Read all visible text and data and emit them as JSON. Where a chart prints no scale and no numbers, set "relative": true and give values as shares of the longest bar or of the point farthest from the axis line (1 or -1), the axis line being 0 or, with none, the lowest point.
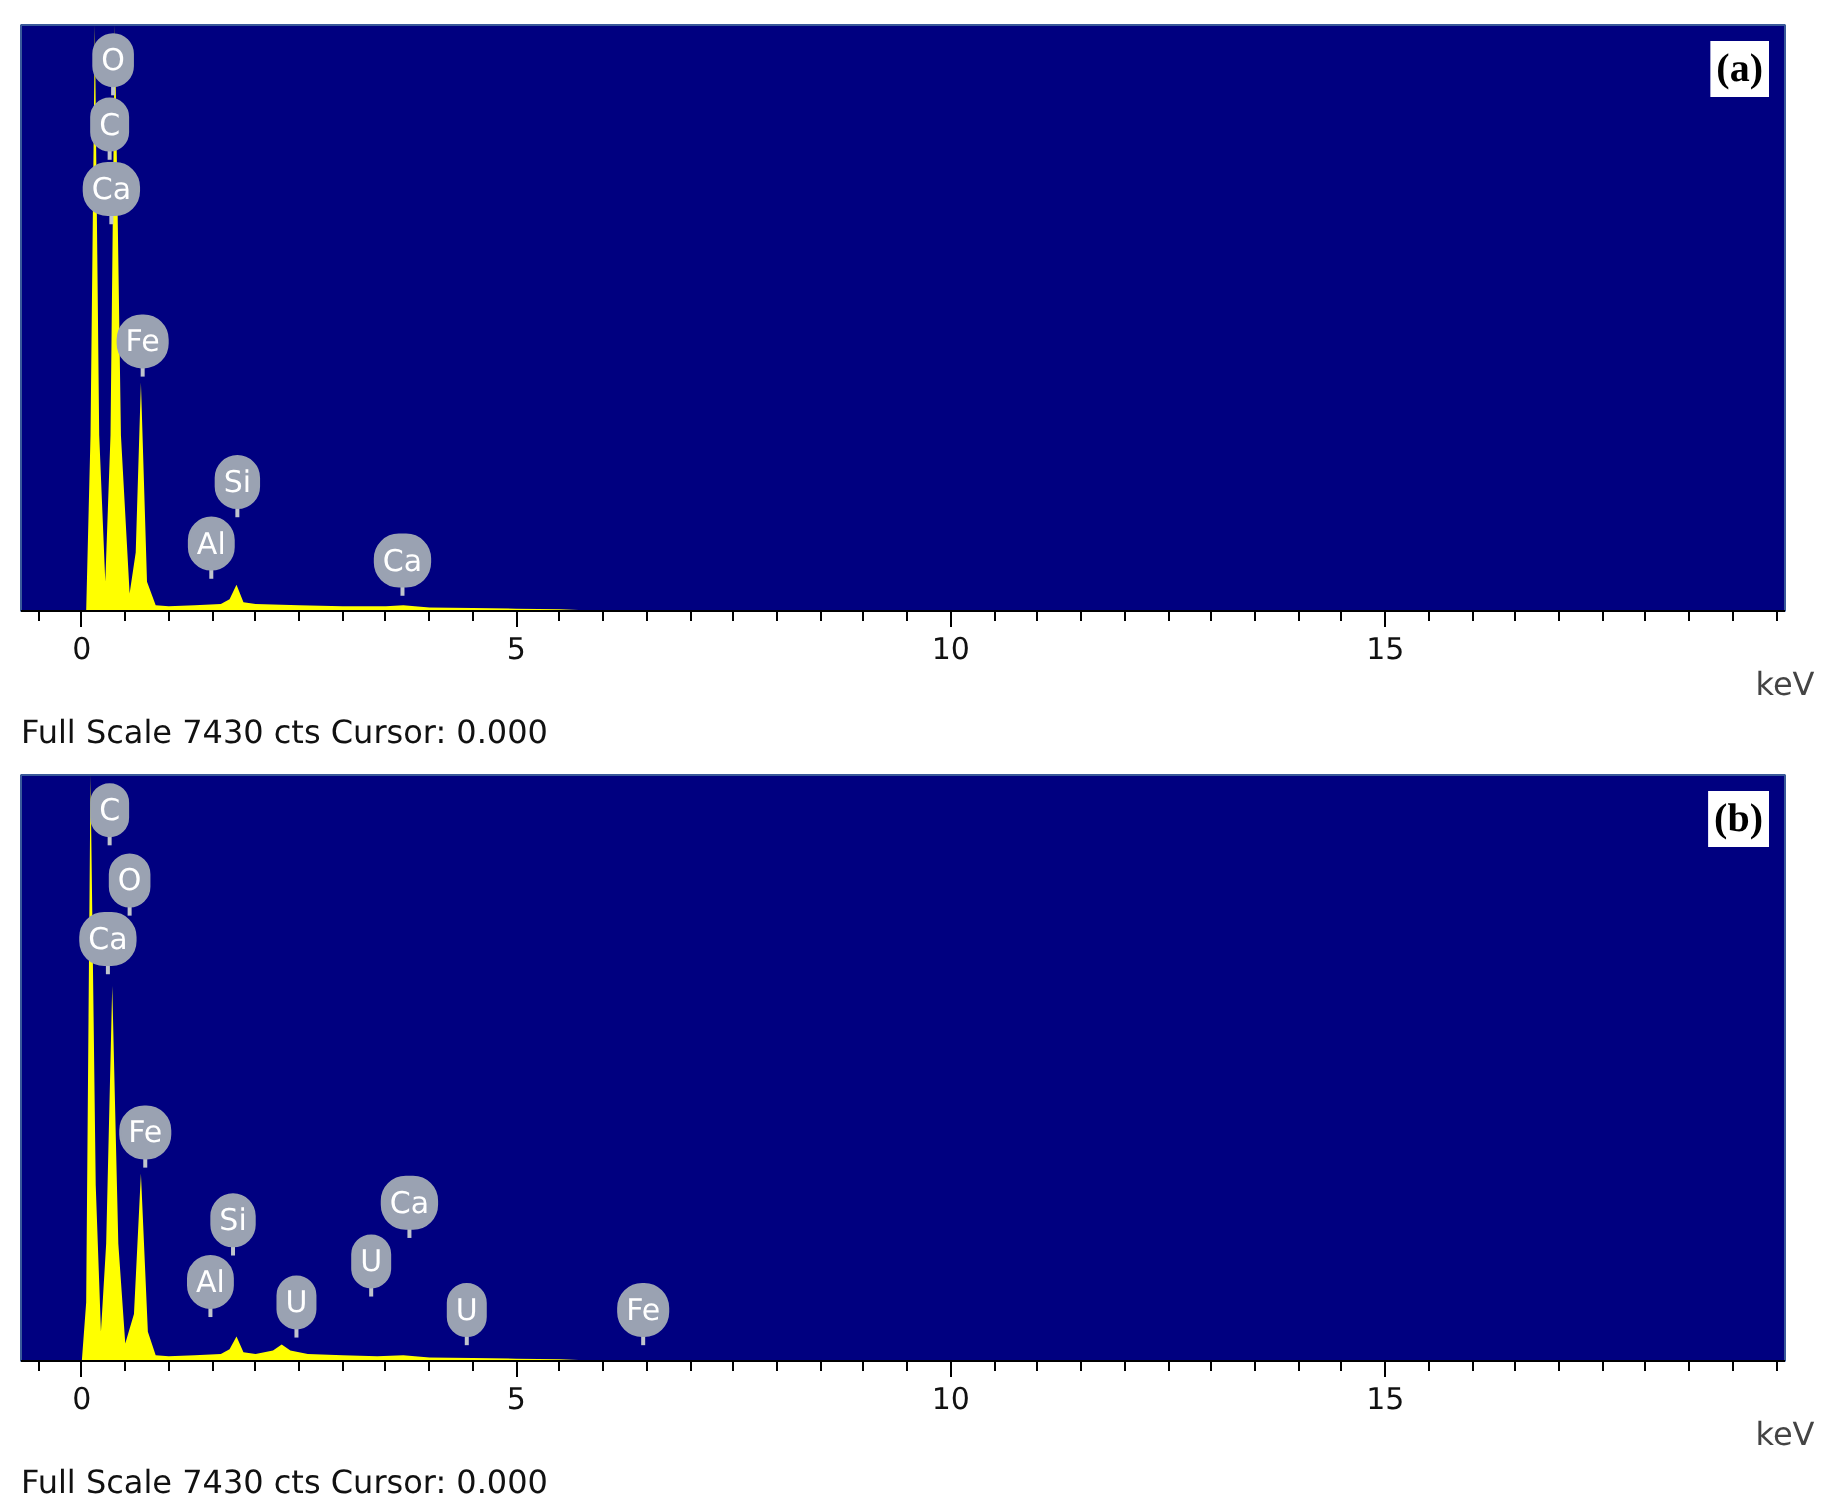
{
  "chart_data": [
    {
      "type": "area",
      "title": "(a)",
      "xlabel": "keV",
      "relative": true,
      "xlim": [
        -0.7,
        19.6
      ],
      "xticks": [
        0,
        5,
        10,
        15
      ],
      "tick_labels": "x",
      "grid": false,
      "series": [
        {
          "color": "#ffff00",
          "x": [
            -0.1,
            0.05,
            0.1,
            0.15,
            0.2,
            0.27,
            0.33,
            0.38,
            0.45,
            0.55,
            0.62,
            0.68,
            0.75,
            0.85,
            1.0,
            1.3,
            1.6,
            1.7,
            1.78,
            1.86,
            2.0,
            2.5,
            3.0,
            3.5,
            3.7,
            4.0,
            4.5,
            5.0,
            5.5,
            6.0,
            19.6
          ],
          "values": [
            0,
            0,
            0.3,
            1,
            0.3,
            0.05,
            0.3,
            1,
            0.3,
            0.03,
            0.1,
            0.39,
            0.05,
            0.01,
            0.008,
            0.01,
            0.012,
            0.02,
            0.045,
            0.015,
            0.012,
            0.01,
            0.008,
            0.008,
            0.01,
            0.006,
            0.005,
            0.004,
            0.003,
            0,
            0
          ]
        }
      ],
      "annotations": [
        "Full Scale 7430 cts Cursor: 0.000",
        {
          "text": "O",
          "x": 0.36,
          "y": 0.94
        },
        {
          "text": "C",
          "x": 0.32,
          "y": 0.83
        },
        {
          "text": "Ca",
          "x": 0.34,
          "y": 0.72
        },
        {
          "text": "Fe",
          "x": 0.7,
          "y": 0.46
        },
        {
          "text": "Si",
          "x": 1.79,
          "y": 0.22
        },
        {
          "text": "Al",
          "x": 1.49,
          "y": 0.115
        },
        {
          "text": "Ca",
          "x": 3.69,
          "y": 0.086
        }
      ]
    },
    {
      "type": "area",
      "title": "(b)",
      "xlabel": "keV",
      "relative": true,
      "xlim": [
        -0.7,
        19.6
      ],
      "xticks": [
        0,
        5,
        10,
        15
      ],
      "tick_labels": "x",
      "grid": false,
      "series": [
        {
          "color": "#ffff00",
          "x": [
            -0.1,
            0.0,
            0.05,
            0.1,
            0.16,
            0.22,
            0.28,
            0.35,
            0.42,
            0.5,
            0.6,
            0.68,
            0.76,
            0.85,
            1.0,
            1.3,
            1.6,
            1.7,
            1.78,
            1.86,
            2.0,
            2.2,
            2.3,
            2.4,
            2.6,
            3.0,
            3.4,
            3.7,
            4.0,
            4.5,
            5.0,
            5.5,
            6.0,
            19.6
          ],
          "values": [
            0,
            0,
            0.1,
            1,
            0.3,
            0.05,
            0.2,
            0.64,
            0.2,
            0.03,
            0.08,
            0.32,
            0.05,
            0.01,
            0.008,
            0.01,
            0.012,
            0.02,
            0.042,
            0.015,
            0.012,
            0.018,
            0.028,
            0.018,
            0.012,
            0.01,
            0.008,
            0.01,
            0.006,
            0.005,
            0.004,
            0.003,
            0,
            0
          ]
        }
      ],
      "annotations": [
        "Full Scale 7430 cts Cursor: 0.000",
        {
          "text": "C",
          "x": 0.32,
          "y": 0.94
        },
        {
          "text": "O",
          "x": 0.55,
          "y": 0.82
        },
        {
          "text": "Ca",
          "x": 0.3,
          "y": 0.72
        },
        {
          "text": "Fe",
          "x": 0.73,
          "y": 0.39
        },
        {
          "text": "Si",
          "x": 1.74,
          "y": 0.24
        },
        {
          "text": "Ca",
          "x": 3.77,
          "y": 0.27
        },
        {
          "text": "U",
          "x": 3.33,
          "y": 0.17
        },
        {
          "text": "Al",
          "x": 1.48,
          "y": 0.135
        },
        {
          "text": "U",
          "x": 2.47,
          "y": 0.1
        },
        {
          "text": "U",
          "x": 4.43,
          "y": 0.087
        },
        {
          "text": "Fe",
          "x": 6.46,
          "y": 0.087
        }
      ]
    }
  ]
}
